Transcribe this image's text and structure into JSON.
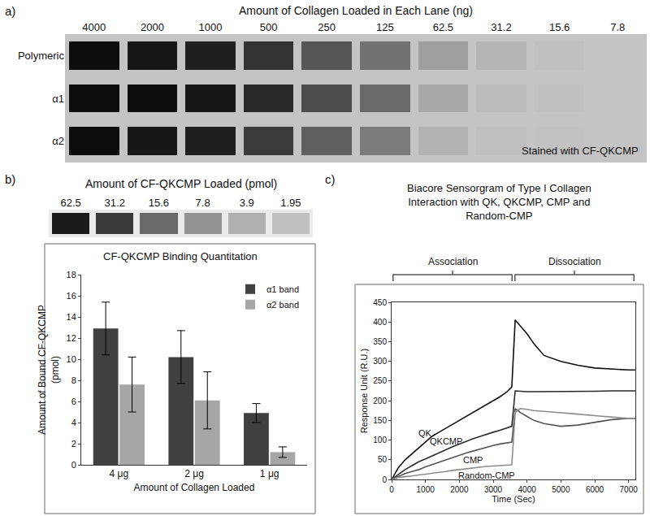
{
  "chart_data": [
    {
      "type": "gel",
      "label": "a)",
      "title": "Amount of Collagen Loaded in Each Lane (ng)",
      "categories": [
        4000,
        2000,
        1000,
        500,
        250,
        125,
        62.5,
        31.2,
        15.6,
        7.8
      ],
      "bands": [
        "Polymeric",
        "α1",
        "α2"
      ],
      "intensity": [
        [
          1,
          0.95,
          0.9,
          0.8,
          0.6,
          0.45,
          0.2,
          0.08,
          0.02,
          0
        ],
        [
          1,
          1,
          0.95,
          0.85,
          0.65,
          0.5,
          0.15,
          0.05,
          0.02,
          0
        ],
        [
          1,
          0.95,
          0.9,
          0.75,
          0.55,
          0.4,
          0.1,
          0.03,
          0.01,
          0
        ]
      ],
      "zlim": [
        0,
        1
      ],
      "color": "#0d0d0d",
      "annotations": [
        "Stained with CF-QKCMP"
      ]
    },
    {
      "type": "gel",
      "label": "b)",
      "title": "Amount of CF-QKCMP Loaded (pmol)",
      "categories": [
        62.5,
        31.2,
        15.6,
        7.8,
        3.9,
        1.95
      ],
      "bands": [
        null
      ],
      "intensity": [
        [
          1,
          0.85,
          0.62,
          0.42,
          0.28,
          0.2
        ]
      ],
      "zlim": [
        0,
        1
      ],
      "color": "#1a1a1a",
      "tick_labels": "x"
    },
    {
      "type": "bar",
      "title": "CF-QKCMP Binding Quantitation",
      "x_label": "Amount of Collagen Loaded",
      "y_label": "Amount of Bound CF-QKCMP\n(pmol)",
      "categories": [
        "4 μg",
        "2 μg",
        "1 μg"
      ],
      "series": [
        {
          "name": "α1 band",
          "color": "#404040",
          "values": [
            12.9,
            10.2,
            4.9
          ],
          "errors": [
            2.5,
            2.5,
            0.9
          ]
        },
        {
          "name": "α2 band",
          "color": "#a6a6a6",
          "values": [
            7.6,
            6.1,
            1.2
          ],
          "errors": [
            2.6,
            2.7,
            0.5
          ]
        }
      ],
      "ylim": [
        0,
        18
      ],
      "yticks": [
        0,
        2,
        4,
        6,
        8,
        10,
        12,
        14,
        16,
        18
      ],
      "grid": false,
      "legend": "upper right"
    },
    {
      "type": "line",
      "label": "c)",
      "title": "Biacore Sensorgram of Type I Collagen\nInteraction with QK, QKCMP, CMP and\nRandom-CMP",
      "x_label": "Time (Sec)",
      "y_label": "Response Unit (R.U.)",
      "x": [
        0,
        200,
        400,
        600,
        800,
        1000,
        1200,
        1400,
        1600,
        1800,
        2000,
        2200,
        2400,
        2600,
        2800,
        3000,
        3200,
        3400,
        3550,
        3650,
        3800,
        4000,
        4200,
        4500,
        5000,
        5500,
        6000,
        6500,
        7000,
        7200
      ],
      "series": [
        {
          "name": "QK",
          "color": "#111111",
          "values": [
            0,
            30,
            50,
            65,
            80,
            95,
            110,
            120,
            130,
            140,
            150,
            160,
            170,
            180,
            190,
            200,
            210,
            222,
            235,
            405,
            390,
            370,
            345,
            315,
            300,
            290,
            283,
            280,
            278,
            278
          ]
        },
        {
          "name": "QKCMP",
          "color": "#2b2b2b",
          "values": [
            0,
            12,
            25,
            35,
            45,
            52,
            60,
            68,
            75,
            83,
            90,
            97,
            103,
            109,
            115,
            120,
            125,
            130,
            135,
            225,
            224,
            223,
            223,
            223,
            224,
            224,
            224,
            225,
            225,
            225
          ]
        },
        {
          "name": "CMP",
          "color": "#555555",
          "values": [
            0,
            8,
            15,
            20,
            25,
            32,
            38,
            44,
            50,
            56,
            62,
            67,
            72,
            77,
            82,
            86,
            90,
            93,
            95,
            180,
            170,
            160,
            150,
            142,
            135,
            138,
            145,
            152,
            155,
            155
          ]
        },
        {
          "name": "Random-CMP",
          "color": "#8c8c8c",
          "values": [
            0,
            5,
            7,
            9,
            11,
            13,
            15,
            18,
            20,
            23,
            25,
            28,
            30,
            32,
            33,
            34,
            35,
            36,
            37,
            170,
            180,
            178,
            175,
            173,
            170,
            166,
            162,
            158,
            155,
            155
          ]
        }
      ],
      "xlim": [
        0,
        7200
      ],
      "xticks": [
        0,
        1000,
        2000,
        3000,
        4000,
        5000,
        6000,
        7000
      ],
      "ylim": [
        0,
        450
      ],
      "yticks": [
        0,
        50,
        100,
        150,
        200,
        250,
        300,
        350,
        400,
        450
      ],
      "grid": false,
      "phases": [
        {
          "label": "Association",
          "from": 0,
          "to": 3600
        },
        {
          "label": "Dissociation",
          "from": 3600,
          "to": 7200
        }
      ]
    }
  ]
}
